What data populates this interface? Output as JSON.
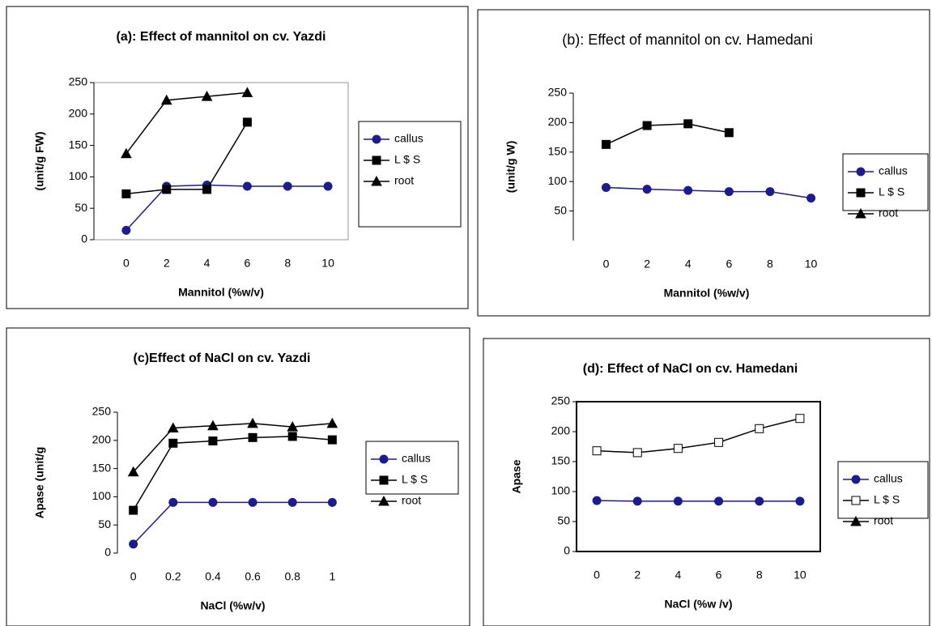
{
  "chart_data": [
    {
      "type": "line",
      "title": "(a): Effect of mannitol on cv. Yazdi",
      "xlabel": "Mannitol (%w/v)",
      "ylabel": "(unit/g FW)",
      "x": [
        0,
        2,
        4,
        6,
        8,
        10
      ],
      "xlim": [
        -1.6,
        11
      ],
      "xticks": [
        0,
        2,
        4,
        6,
        8,
        10
      ],
      "ylim": [
        0,
        250
      ],
      "yticks": [
        0,
        50,
        100,
        150,
        200,
        250
      ],
      "series": [
        {
          "name": "callus",
          "color": "#1c1c8c",
          "marker": "circle",
          "values": [
            15,
            85,
            87,
            85,
            85,
            85
          ]
        },
        {
          "name": "L $ S",
          "color": "#000000",
          "marker": "square",
          "values": [
            73,
            80,
            80,
            187,
            null,
            null
          ]
        },
        {
          "name": "root",
          "color": "#000000",
          "marker": "triangle",
          "values": [
            137,
            222,
            228,
            234,
            null,
            null
          ]
        }
      ]
    },
    {
      "type": "line",
      "title": "(b): Effect of mannitol on cv. Hamedani",
      "xlabel": "Mannitol (%w/v)",
      "ylabel": "(unit/g W)",
      "x": [
        0,
        2,
        4,
        6,
        8,
        10
      ],
      "xlim": [
        -1.6,
        11.4
      ],
      "xticks": [
        0,
        2,
        4,
        6,
        8,
        10
      ],
      "ylim": [
        0,
        250
      ],
      "yticks": [
        50,
        100,
        150,
        200,
        250
      ],
      "series": [
        {
          "name": "callus",
          "color": "#1c1c8c",
          "marker": "circle",
          "values": [
            90,
            87,
            85,
            83,
            83,
            72
          ]
        },
        {
          "name": "L $ S",
          "color": "#000000",
          "marker": "square",
          "values": [
            163,
            195,
            198,
            183,
            null,
            null
          ]
        },
        {
          "name": "root",
          "color": "#000000",
          "marker": "triangle",
          "values": [
            null,
            null,
            null,
            null,
            null,
            null
          ]
        }
      ]
    },
    {
      "type": "line",
      "title": "(c)Effect of NaCl on cv. Yazdi",
      "xlabel": "NaCl (%w/v)",
      "ylabel": "Apase (unit/g",
      "x": [
        0,
        0.2,
        0.4,
        0.6,
        0.8,
        1
      ],
      "xlim": [
        -0.08,
        1.08
      ],
      "xticks": [
        0,
        0.2,
        0.4,
        0.6,
        0.8,
        1
      ],
      "ylim": [
        0,
        250
      ],
      "yticks": [
        0,
        50,
        100,
        150,
        200,
        250
      ],
      "series": [
        {
          "name": "callus",
          "color": "#1c1c8c",
          "marker": "circle",
          "values": [
            16,
            90,
            90,
            90,
            90,
            90
          ]
        },
        {
          "name": "L $ S",
          "color": "#000000",
          "marker": "square",
          "values": [
            76,
            195,
            199,
            205,
            207,
            201
          ]
        },
        {
          "name": "root",
          "color": "#000000",
          "marker": "triangle",
          "values": [
            144,
            222,
            226,
            230,
            224,
            230
          ]
        }
      ]
    },
    {
      "type": "line",
      "title": "(d): Effect of NaCl on cv. Hamedani",
      "xlabel": "NaCl (%w /v)",
      "ylabel": "Apase",
      "x": [
        0,
        2,
        4,
        6,
        8,
        10
      ],
      "xlim": [
        -1,
        11
      ],
      "xticks": [
        0,
        2,
        4,
        6,
        8,
        10
      ],
      "ylim": [
        0,
        250
      ],
      "yticks": [
        0,
        50,
        100,
        150,
        200,
        250
      ],
      "series": [
        {
          "name": "callus",
          "color": "#1c1c8c",
          "marker": "circle",
          "values": [
            85,
            84,
            84,
            84,
            84,
            84
          ]
        },
        {
          "name": "L $ S",
          "color": "#000000",
          "marker": "opensquare",
          "values": [
            168,
            165,
            172,
            182,
            205,
            222
          ]
        },
        {
          "name": "root",
          "color": "#000000",
          "marker": "triangle",
          "values": [
            null,
            null,
            null,
            null,
            null,
            null
          ]
        }
      ]
    }
  ]
}
